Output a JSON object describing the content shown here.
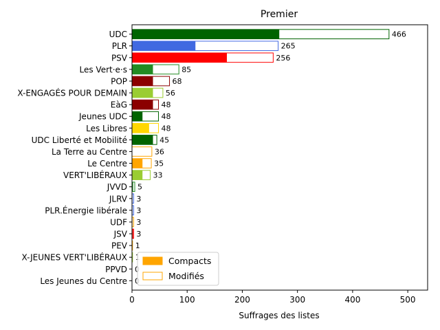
{
  "chart_data": {
    "type": "bar",
    "orientation": "horizontal",
    "stacked_overlay": true,
    "title": "Premier",
    "xlabel": "Suffrages des listes",
    "ylabel": "",
    "xlim": [
      0,
      536
    ],
    "xticks": [
      "0",
      "100",
      "200",
      "300",
      "400",
      "500"
    ],
    "xtick_values": [
      0,
      100,
      200,
      300,
      400,
      500
    ],
    "legend": {
      "placement": "lower-left",
      "entries": [
        {
          "label": "Compacts",
          "style": "filled",
          "color": "#ffa500"
        },
        {
          "label": "Modifiés",
          "style": "outline",
          "color": "#ffa500"
        }
      ]
    },
    "categories": [
      {
        "label": "UDC",
        "compacts": 267,
        "total": 466,
        "total_label": "466",
        "color": "#006400"
      },
      {
        "label": "PLR",
        "compacts": 115,
        "total": 265,
        "total_label": "265",
        "color": "#4169e1"
      },
      {
        "label": "PSV",
        "compacts": 172,
        "total": 256,
        "total_label": "256",
        "color": "#ff0000"
      },
      {
        "label": "Les Vert·e·s",
        "compacts": 38,
        "total": 85,
        "total_label": "85",
        "color": "#228b22"
      },
      {
        "label": "POP",
        "compacts": 38,
        "total": 68,
        "total_label": "68",
        "color": "#8b0000"
      },
      {
        "label": "X-ENGAGÉS POUR DEMAIN",
        "compacts": 38,
        "total": 56,
        "total_label": "56",
        "color": "#9acd32"
      },
      {
        "label": "EàG",
        "compacts": 38,
        "total": 48,
        "total_label": "48",
        "color": "#8b0000"
      },
      {
        "label": "Jeunes UDC",
        "compacts": 19,
        "total": 48,
        "total_label": "48",
        "color": "#006400"
      },
      {
        "label": "Les Libres",
        "compacts": 31,
        "total": 48,
        "total_label": "48",
        "color": "#ffd700"
      },
      {
        "label": "UDC Liberté et Mobilité",
        "compacts": 38,
        "total": 45,
        "total_label": "45",
        "color": "#006400"
      },
      {
        "label": "La Terre au Centre",
        "compacts": 0,
        "total": 36,
        "total_label": "36",
        "color": "#ffa500"
      },
      {
        "label": "Le Centre",
        "compacts": 19,
        "total": 35,
        "total_label": "35",
        "color": "#ffa500"
      },
      {
        "label": "VERT'LIBÉRAUX",
        "compacts": 19,
        "total": 33,
        "total_label": "33",
        "color": "#9acd32"
      },
      {
        "label": "JVVD",
        "compacts": 2,
        "total": 5,
        "total_label": "5",
        "color": "#228b22"
      },
      {
        "label": "JLRV",
        "compacts": 1,
        "total": 3,
        "total_label": "3",
        "color": "#4169e1"
      },
      {
        "label": "PLR.Énergie libérale",
        "compacts": 1,
        "total": 3,
        "total_label": "3",
        "color": "#4169e1"
      },
      {
        "label": "UDF",
        "compacts": 1,
        "total": 3,
        "total_label": "3",
        "color": "#ffa500"
      },
      {
        "label": "JSV",
        "compacts": 2,
        "total": 3,
        "total_label": "3",
        "color": "#ff0000"
      },
      {
        "label": "PEV",
        "compacts": 0,
        "total": 1,
        "total_label": "1",
        "color": "#ffa500"
      },
      {
        "label": "X-JEUNES VERT'LIBÉRAUX",
        "compacts": 0,
        "total": 1,
        "total_label": "1",
        "color": "#9acd32"
      },
      {
        "label": "PPVD",
        "compacts": 0,
        "total": 0,
        "total_label": "0",
        "color": "#ffa500"
      },
      {
        "label": "Les Jeunes du Centre",
        "compacts": 0,
        "total": 0,
        "total_label": "0",
        "color": "#ffa500"
      }
    ]
  }
}
